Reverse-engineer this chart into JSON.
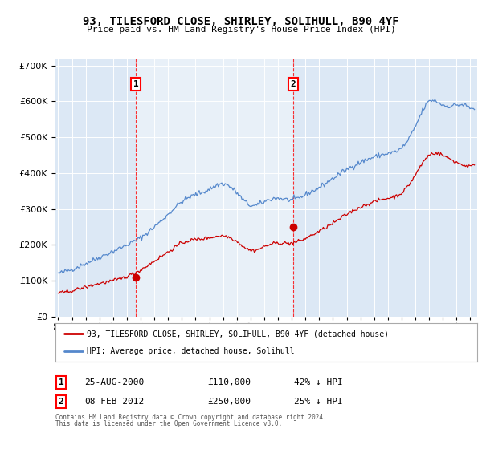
{
  "title": "93, TILESFORD CLOSE, SHIRLEY, SOLIHULL, B90 4YF",
  "subtitle": "Price paid vs. HM Land Registry's House Price Index (HPI)",
  "xlim_start": 1994.8,
  "xlim_end": 2025.5,
  "ylim": [
    0,
    720000
  ],
  "yticks": [
    0,
    100000,
    200000,
    300000,
    400000,
    500000,
    600000,
    700000
  ],
  "sale1_date": 2000.65,
  "sale1_price": 110000,
  "sale1_label": "1",
  "sale2_date": 2012.1,
  "sale2_price": 250000,
  "sale2_label": "2",
  "hpi_line_color": "#5588cc",
  "sale_line_color": "#cc0000",
  "shade_color": "#dce8f5",
  "bg_color": "#dce8f5",
  "legend_label_sale": "93, TILESFORD CLOSE, SHIRLEY, SOLIHULL, B90 4YF (detached house)",
  "legend_label_hpi": "HPI: Average price, detached house, Solihull",
  "footer1": "Contains HM Land Registry data © Crown copyright and database right 2024.",
  "footer2": "This data is licensed under the Open Government Licence v3.0.",
  "table_row1": [
    "1",
    "25-AUG-2000",
    "£110,000",
    "42% ↓ HPI"
  ],
  "table_row2": [
    "2",
    "08-FEB-2012",
    "£250,000",
    "25% ↓ HPI"
  ],
  "hpi_base_years": [
    1995,
    1996,
    1997,
    1998,
    1999,
    2000,
    2001,
    2002,
    2003,
    2004,
    2005,
    2006,
    2007,
    2008,
    2009,
    2010,
    2011,
    2012,
    2013,
    2014,
    2015,
    2016,
    2017,
    2018,
    2019,
    2020,
    2021,
    2022,
    2023,
    2024,
    2025
  ],
  "hpi_base_vals": [
    120000,
    132000,
    148000,
    165000,
    182000,
    200000,
    220000,
    250000,
    285000,
    320000,
    340000,
    355000,
    370000,
    345000,
    310000,
    320000,
    330000,
    325000,
    340000,
    360000,
    385000,
    410000,
    430000,
    445000,
    455000,
    470000,
    530000,
    600000,
    590000,
    590000,
    580000
  ],
  "sale_base_years": [
    1995,
    1996,
    1997,
    1998,
    1999,
    2000,
    2001,
    2002,
    2003,
    2004,
    2005,
    2006,
    2007,
    2008,
    2009,
    2010,
    2011,
    2012,
    2013,
    2014,
    2015,
    2016,
    2017,
    2018,
    2019,
    2020,
    2021,
    2022,
    2023,
    2024,
    2025
  ],
  "sale_base_vals": [
    65000,
    72000,
    82000,
    92000,
    100000,
    112000,
    130000,
    155000,
    180000,
    205000,
    215000,
    220000,
    225000,
    210000,
    185000,
    195000,
    205000,
    205000,
    218000,
    238000,
    260000,
    285000,
    305000,
    320000,
    330000,
    345000,
    395000,
    450000,
    450000,
    430000,
    420000
  ]
}
